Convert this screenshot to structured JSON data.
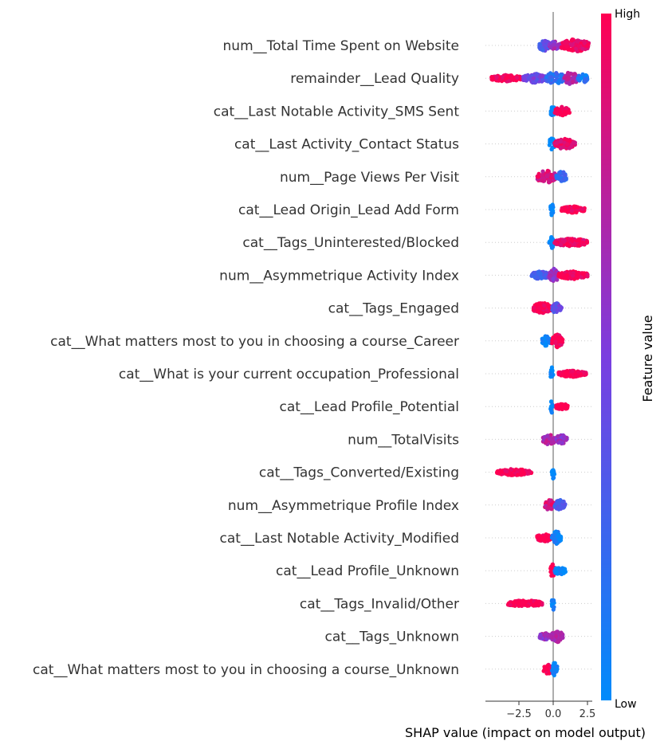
{
  "chart_data": {
    "type": "scatter",
    "subtype": "shap-beeswarm",
    "xlabel": "SHAP value (impact on model output)",
    "xlim": [
      -4.8,
      2.9
    ],
    "xticks": [
      -2.5,
      0.0,
      2.5
    ],
    "xtick_labels": [
      "−2.5",
      "0.0",
      "2.5"
    ],
    "zero_line": 0,
    "colorbar": {
      "label": "Feature value",
      "high": "High",
      "low": "Low",
      "low_color": "#008bfb",
      "high_color": "#ff0052"
    },
    "features": [
      {
        "name": "num__Total Time Spent on Website",
        "clusters": [
          {
            "from": -1.0,
            "to": -0.3,
            "fv": 0.35,
            "h": 1.0
          },
          {
            "from": -0.3,
            "to": 0.6,
            "fv": 0.6,
            "h": 0.6
          },
          {
            "from": 0.6,
            "to": 2.6,
            "fv": 0.95,
            "h": 1.0
          }
        ]
      },
      {
        "name": "remainder__Lead Quality",
        "clusters": [
          {
            "from": -4.5,
            "to": -2.3,
            "fv": 1.0,
            "h": 0.5
          },
          {
            "from": -2.2,
            "to": -0.5,
            "fv": 0.45,
            "h": 0.7
          },
          {
            "from": -0.5,
            "to": 0.8,
            "fv": 0.2,
            "h": 1.0
          },
          {
            "from": 0.8,
            "to": 1.8,
            "fv": 0.7,
            "h": 1.0
          },
          {
            "from": 1.8,
            "to": 2.5,
            "fv": 0.1,
            "h": 0.7
          }
        ]
      },
      {
        "name": "cat__Last Notable Activity_SMS Sent",
        "clusters": [
          {
            "from": -0.2,
            "to": 0.1,
            "fv": 0.0,
            "h": 1.0
          },
          {
            "from": 0.1,
            "to": 1.2,
            "fv": 1.0,
            "h": 0.7
          }
        ]
      },
      {
        "name": "cat__Last Activity_Contact Status",
        "clusters": [
          {
            "from": -0.3,
            "to": 0.1,
            "fv": 0.0,
            "h": 1.0
          },
          {
            "from": 0.1,
            "to": 1.6,
            "fv": 0.9,
            "h": 0.8
          }
        ]
      },
      {
        "name": "num__Page Views Per Visit",
        "clusters": [
          {
            "from": -1.2,
            "to": 0.2,
            "fv": 0.85,
            "h": 1.0
          },
          {
            "from": 0.2,
            "to": 1.0,
            "fv": 0.2,
            "h": 0.8
          }
        ]
      },
      {
        "name": "cat__Lead Origin_Lead Add Form",
        "clusters": [
          {
            "from": -0.2,
            "to": 0.0,
            "fv": 0.0,
            "h": 1.0
          },
          {
            "from": 0.6,
            "to": 2.3,
            "fv": 1.0,
            "h": 0.5
          }
        ]
      },
      {
        "name": "cat__Tags_Uninterested/Blocked",
        "clusters": [
          {
            "from": -0.3,
            "to": 0.1,
            "fv": 0.0,
            "h": 1.0
          },
          {
            "from": 0.1,
            "to": 2.5,
            "fv": 0.95,
            "h": 0.6
          }
        ]
      },
      {
        "name": "num__Asymmetrique Activity Index",
        "clusters": [
          {
            "from": -1.6,
            "to": -0.3,
            "fv": 0.3,
            "h": 0.6
          },
          {
            "from": -0.3,
            "to": 0.4,
            "fv": 0.6,
            "h": 1.0
          },
          {
            "from": 0.4,
            "to": 2.5,
            "fv": 1.0,
            "h": 0.6
          }
        ]
      },
      {
        "name": "cat__Tags_Engaged",
        "clusters": [
          {
            "from": -1.5,
            "to": -0.1,
            "fv": 1.0,
            "h": 0.8
          },
          {
            "from": -0.1,
            "to": 0.6,
            "fv": 0.4,
            "h": 0.8
          }
        ]
      },
      {
        "name": "cat__What matters most to you in choosing a course_Career",
        "clusters": [
          {
            "from": -0.8,
            "to": -0.2,
            "fv": 0.0,
            "h": 0.8
          },
          {
            "from": -0.1,
            "to": 0.7,
            "fv": 1.0,
            "h": 1.0
          }
        ]
      },
      {
        "name": "cat__What is your current occupation_Professional",
        "clusters": [
          {
            "from": -0.2,
            "to": 0.0,
            "fv": 0.0,
            "h": 1.0
          },
          {
            "from": 0.4,
            "to": 2.4,
            "fv": 1.0,
            "h": 0.5
          }
        ]
      },
      {
        "name": "cat__Lead Profile_Potential",
        "clusters": [
          {
            "from": -0.2,
            "to": 0.0,
            "fv": 0.0,
            "h": 1.0
          },
          {
            "from": 0.2,
            "to": 1.1,
            "fv": 1.0,
            "h": 0.5
          }
        ]
      },
      {
        "name": "num__TotalVisits",
        "clusters": [
          {
            "from": -0.8,
            "to": 0.2,
            "fv": 0.7,
            "h": 0.8
          },
          {
            "from": 0.2,
            "to": 1.0,
            "fv": 0.6,
            "h": 0.7
          }
        ]
      },
      {
        "name": "cat__Tags_Converted/Existing",
        "clusters": [
          {
            "from": -4.1,
            "to": -1.6,
            "fv": 1.0,
            "h": 0.5
          },
          {
            "from": -0.1,
            "to": 0.1,
            "fv": 0.0,
            "h": 1.0
          }
        ]
      },
      {
        "name": "num__Asymmetrique Profile Index",
        "clusters": [
          {
            "from": -0.6,
            "to": 0.1,
            "fv": 0.85,
            "h": 0.8
          },
          {
            "from": 0.1,
            "to": 0.9,
            "fv": 0.3,
            "h": 0.8
          }
        ]
      },
      {
        "name": "cat__Last Notable Activity_Modified",
        "clusters": [
          {
            "from": -1.2,
            "to": -0.1,
            "fv": 1.0,
            "h": 0.6
          },
          {
            "from": -0.1,
            "to": 0.6,
            "fv": 0.05,
            "h": 1.0
          }
        ]
      },
      {
        "name": "cat__Lead Profile_Unknown",
        "clusters": [
          {
            "from": -0.2,
            "to": 0.1,
            "fv": 1.0,
            "h": 1.0
          },
          {
            "from": 0.1,
            "to": 0.9,
            "fv": 0.0,
            "h": 0.6
          }
        ]
      },
      {
        "name": "cat__Tags_Invalid/Other",
        "clusters": [
          {
            "from": -3.3,
            "to": -0.8,
            "fv": 1.0,
            "h": 0.5
          },
          {
            "from": -0.1,
            "to": 0.1,
            "fv": 0.0,
            "h": 1.0
          }
        ]
      },
      {
        "name": "cat__Tags_Unknown",
        "clusters": [
          {
            "from": -1.0,
            "to": -0.2,
            "fv": 0.6,
            "h": 0.5
          },
          {
            "from": -0.2,
            "to": 0.7,
            "fv": 0.7,
            "h": 0.9
          }
        ]
      },
      {
        "name": "cat__What matters most to you in choosing a course_Unknown",
        "clusters": [
          {
            "from": -0.7,
            "to": -0.1,
            "fv": 1.0,
            "h": 0.8
          },
          {
            "from": -0.1,
            "to": 0.3,
            "fv": 0.0,
            "h": 1.0
          }
        ]
      }
    ]
  }
}
